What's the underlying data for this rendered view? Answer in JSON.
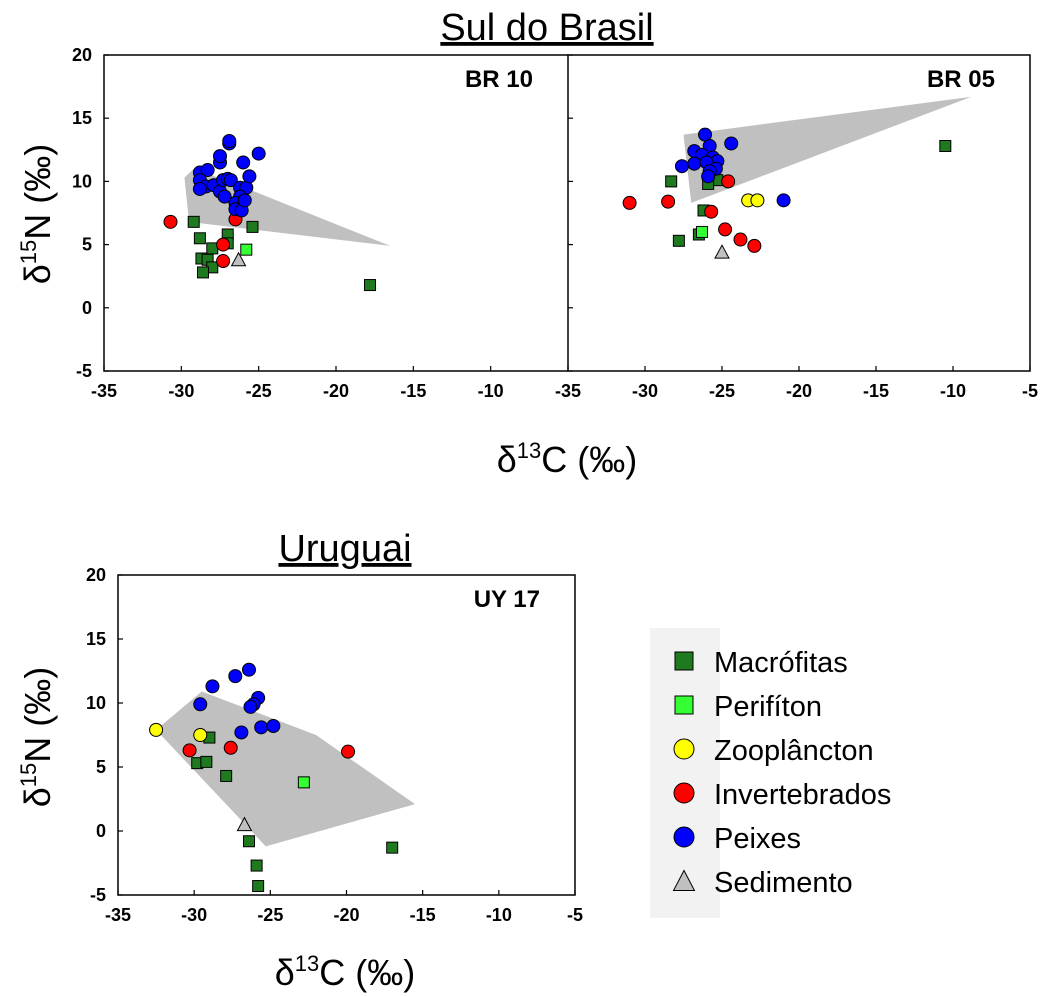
{
  "figure": {
    "top_title": "Sul do Brasil",
    "bottom_title": "Uruguai",
    "ylabel_main": "δ",
    "ylabel_sup": "15",
    "ylabel_rest": "N (‰)",
    "xlabel_main": "δ",
    "xlabel_sup": "13",
    "xlabel_rest": "C (‰)"
  },
  "legend": [
    {
      "label": "Macrófitas",
      "marker": "square",
      "color": "#1f7a1f"
    },
    {
      "label": "Perifíton",
      "marker": "square",
      "color": "#33ff33"
    },
    {
      "label": "Zooplâncton",
      "marker": "circle",
      "color": "#ffff00"
    },
    {
      "label": "Invertebrados",
      "marker": "circle",
      "color": "#ff0000"
    },
    {
      "label": "Peixes",
      "marker": "circle",
      "color": "#0000ff"
    },
    {
      "label": "Sedimento",
      "marker": "triangle",
      "color": "#c0c0c0"
    }
  ],
  "chart_data": [
    {
      "type": "scatter",
      "panel": "BR 10",
      "xlim": [
        -35,
        -5
      ],
      "ylim": [
        -5,
        20
      ],
      "xticks": [
        "-35",
        "-30",
        "-25",
        "-20",
        "-15",
        "-10"
      ],
      "yticks": [
        "-5",
        "0",
        "5",
        "10",
        "15",
        "20"
      ],
      "hull": [
        [
          -29.8,
          10.3
        ],
        [
          -29.2,
          11.0
        ],
        [
          -26.5,
          9.8
        ],
        [
          -16.5,
          4.9
        ],
        [
          -29.5,
          6.8
        ]
      ],
      "series": [
        {
          "name": "Macrófitas",
          "points": [
            [
              -29.2,
              6.8
            ],
            [
              -28.8,
              5.5
            ],
            [
              -28.0,
              4.7
            ],
            [
              -28.7,
              3.9
            ],
            [
              -28.3,
              3.8
            ],
            [
              -28.0,
              3.2
            ],
            [
              -28.6,
              2.8
            ],
            [
              -27.0,
              5.8
            ],
            [
              -27.0,
              5.1
            ],
            [
              -25.4,
              6.4
            ],
            [
              -17.8,
              1.8
            ]
          ]
        },
        {
          "name": "Perifíton",
          "points": [
            [
              -25.8,
              4.6
            ]
          ]
        },
        {
          "name": "Invertebrados",
          "points": [
            [
              -30.7,
              6.8
            ],
            [
              -26.5,
              7.0
            ],
            [
              -27.3,
              5.0
            ],
            [
              -27.3,
              3.7
            ]
          ]
        },
        {
          "name": "Peixes",
          "points": [
            [
              -28.8,
              10.7
            ],
            [
              -28.3,
              10.9
            ],
            [
              -28.8,
              10.1
            ],
            [
              -28.4,
              9.6
            ],
            [
              -28.8,
              9.4
            ],
            [
              -27.9,
              9.7
            ],
            [
              -27.5,
              9.2
            ],
            [
              -27.3,
              10.1
            ],
            [
              -27.0,
              10.2
            ],
            [
              -26.8,
              10.1
            ],
            [
              -27.5,
              11.5
            ],
            [
              -27.5,
              12.0
            ],
            [
              -26.9,
              13.0
            ],
            [
              -26.9,
              13.2
            ],
            [
              -26.0,
              11.5
            ],
            [
              -26.2,
              9.5
            ],
            [
              -25.8,
              9.5
            ],
            [
              -25.6,
              10.4
            ],
            [
              -25.0,
              12.2
            ],
            [
              -26.2,
              8.8
            ],
            [
              -26.5,
              8.3
            ],
            [
              -26.5,
              7.8
            ],
            [
              -26.1,
              7.7
            ],
            [
              -25.9,
              8.5
            ],
            [
              -27.2,
              8.8
            ]
          ]
        },
        {
          "name": "Sedimento",
          "points": [
            [
              -26.3,
              3.8
            ]
          ]
        }
      ]
    },
    {
      "type": "scatter",
      "panel": "BR 05",
      "xlim": [
        -35,
        -5
      ],
      "ylim": [
        -5,
        20
      ],
      "xticks": [
        "-35",
        "-30",
        "-25",
        "-20",
        "-15",
        "-10",
        "-5"
      ],
      "yticks": [],
      "hull": [
        [
          -27.5,
          13.7
        ],
        [
          -8.8,
          16.7
        ],
        [
          -27.0,
          8.3
        ]
      ],
      "series": [
        {
          "name": "Macrófitas",
          "points": [
            [
              -28.3,
              10.0
            ],
            [
              -25.3,
              10.1
            ],
            [
              -25.9,
              9.8
            ],
            [
              -26.2,
              7.7
            ],
            [
              -27.8,
              5.3
            ],
            [
              -26.5,
              5.8
            ],
            [
              -10.5,
              12.8
            ]
          ]
        },
        {
          "name": "Perifíton",
          "points": [
            [
              -26.3,
              6.0
            ]
          ]
        },
        {
          "name": "Zooplâncton",
          "points": [
            [
              -23.3,
              8.5
            ],
            [
              -22.7,
              8.5
            ]
          ]
        },
        {
          "name": "Invertebrados",
          "points": [
            [
              -31.0,
              8.3
            ],
            [
              -28.5,
              8.4
            ],
            [
              -24.6,
              10.0
            ],
            [
              -25.7,
              7.6
            ],
            [
              -24.8,
              6.2
            ],
            [
              -23.8,
              5.4
            ],
            [
              -22.9,
              4.9
            ]
          ]
        },
        {
          "name": "Peixes",
          "points": [
            [
              -26.1,
              13.7
            ],
            [
              -25.8,
              12.8
            ],
            [
              -24.4,
              13.0
            ],
            [
              -26.8,
              12.4
            ],
            [
              -26.3,
              12.1
            ],
            [
              -25.6,
              11.9
            ],
            [
              -25.3,
              11.6
            ],
            [
              -27.6,
              11.2
            ],
            [
              -26.8,
              11.4
            ],
            [
              -26.0,
              11.5
            ],
            [
              -25.4,
              11.0
            ],
            [
              -25.8,
              10.8
            ],
            [
              -25.9,
              10.4
            ],
            [
              -21.0,
              8.5
            ]
          ]
        },
        {
          "name": "Sedimento",
          "points": [
            [
              -25.0,
              4.4
            ]
          ]
        }
      ]
    },
    {
      "type": "scatter",
      "panel": "UY 17",
      "xlim": [
        -35,
        -5
      ],
      "ylim": [
        -5,
        20
      ],
      "xticks": [
        "-35",
        "-30",
        "-25",
        "-20",
        "-15",
        "-10",
        "-5"
      ],
      "yticks": [
        "-5",
        "0",
        "5",
        "10",
        "15",
        "20"
      ],
      "hull": [
        [
          -32.5,
          7.9
        ],
        [
          -29.5,
          10.9
        ],
        [
          -22.0,
          7.5
        ],
        [
          -15.5,
          2.1
        ],
        [
          -25.3,
          -1.2
        ]
      ],
      "series": [
        {
          "name": "Macrófitas",
          "points": [
            [
              -29.8,
              5.3
            ],
            [
              -29.2,
              5.4
            ],
            [
              -29.0,
              7.3
            ],
            [
              -27.9,
              4.3
            ],
            [
              -26.4,
              -0.8
            ],
            [
              -25.9,
              -2.7
            ],
            [
              -25.8,
              -4.3
            ],
            [
              -17.0,
              -1.3
            ]
          ]
        },
        {
          "name": "Perifíton",
          "points": [
            [
              -22.8,
              3.8
            ]
          ]
        },
        {
          "name": "Zooplâncton",
          "points": [
            [
              -32.5,
              7.9
            ],
            [
              -29.6,
              7.5
            ]
          ]
        },
        {
          "name": "Invertebrados",
          "points": [
            [
              -30.3,
              6.3
            ],
            [
              -27.6,
              6.5
            ],
            [
              -19.9,
              6.2
            ]
          ]
        },
        {
          "name": "Peixes",
          "points": [
            [
              -28.8,
              11.3
            ],
            [
              -29.6,
              9.9
            ],
            [
              -27.3,
              12.1
            ],
            [
              -26.4,
              12.6
            ],
            [
              -25.8,
              10.4
            ],
            [
              -26.1,
              9.9
            ],
            [
              -26.3,
              9.7
            ],
            [
              -25.6,
              8.1
            ],
            [
              -24.8,
              8.2
            ],
            [
              -26.9,
              7.7
            ]
          ]
        },
        {
          "name": "Sedimento",
          "points": [
            [
              -26.7,
              0.5
            ]
          ]
        }
      ]
    }
  ]
}
